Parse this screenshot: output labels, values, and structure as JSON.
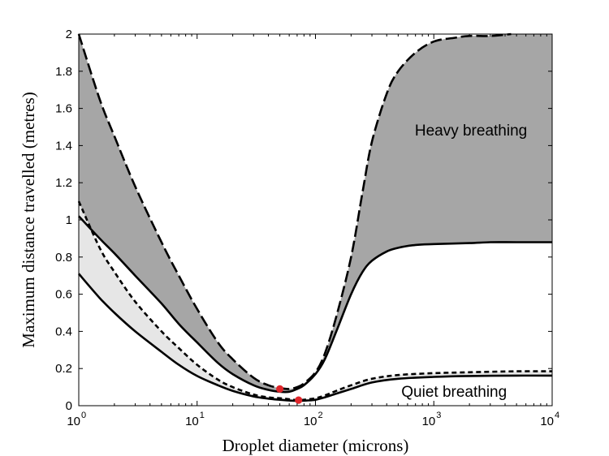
{
  "chart_data": {
    "type": "area",
    "xscale": "log",
    "xlim": [
      1,
      10000
    ],
    "ylim": [
      0,
      2
    ],
    "grid": false,
    "legend": "none",
    "xlabel": "Droplet diameter (microns)",
    "ylabel": "Maximum distance travelled (metres)",
    "yticks": [
      "0",
      "0.2",
      "0.4",
      "0.6",
      "0.8",
      "1",
      "1.2",
      "1.4",
      "1.6",
      "1.8",
      "2"
    ],
    "xticks": [
      {
        "base": "10",
        "exp": "0"
      },
      {
        "base": "10",
        "exp": "1"
      },
      {
        "base": "10",
        "exp": "2"
      },
      {
        "base": "10",
        "exp": "3"
      },
      {
        "base": "10",
        "exp": "4"
      }
    ],
    "annotations": [
      {
        "text": "Heavy breathing",
        "x": 1300,
        "y": 1.48
      },
      {
        "text": "Quiet breathing",
        "x": 1000,
        "y": 0.075
      }
    ],
    "colors": {
      "heavy_fill": "#a6a6a6",
      "quiet_fill": "#e6e6e6",
      "line": "#000000",
      "marker": "#e0262b"
    },
    "series": [
      {
        "style": "dashed-long",
        "x": [
          1,
          1.5,
          2,
          3,
          5,
          7,
          10,
          15,
          20,
          30,
          40,
          50,
          60,
          70,
          80,
          100,
          120,
          150,
          200,
          250,
          300,
          400,
          500,
          700,
          1000,
          1500,
          2000,
          3000,
          4500
        ],
        "y": [
          2.0,
          1.65,
          1.45,
          1.18,
          0.88,
          0.7,
          0.52,
          0.34,
          0.25,
          0.15,
          0.11,
          0.095,
          0.09,
          0.1,
          0.12,
          0.18,
          0.28,
          0.48,
          0.8,
          1.15,
          1.42,
          1.68,
          1.8,
          1.9,
          1.96,
          1.98,
          1.99,
          1.99,
          2.0
        ]
      },
      {
        "style": "solid",
        "x": [
          1,
          1.5,
          2,
          3,
          5,
          7,
          10,
          15,
          20,
          30,
          40,
          50,
          60,
          70,
          80,
          100,
          120,
          150,
          200,
          250,
          300,
          400,
          500,
          700,
          1000,
          2000,
          3000,
          5000,
          10000
        ],
        "y": [
          1.02,
          0.9,
          0.82,
          0.7,
          0.55,
          0.44,
          0.34,
          0.23,
          0.17,
          0.11,
          0.085,
          0.075,
          0.075,
          0.09,
          0.11,
          0.17,
          0.25,
          0.4,
          0.6,
          0.72,
          0.78,
          0.83,
          0.85,
          0.865,
          0.87,
          0.875,
          0.88,
          0.88,
          0.88
        ]
      },
      {
        "style": "dashed-short",
        "x": [
          1,
          1.5,
          2,
          3,
          5,
          7,
          10,
          15,
          20,
          30,
          40,
          50,
          60,
          70,
          80,
          100,
          120,
          150,
          200,
          300,
          500,
          1000,
          2000,
          5000,
          10000
        ],
        "y": [
          1.1,
          0.85,
          0.72,
          0.56,
          0.4,
          0.31,
          0.22,
          0.14,
          0.1,
          0.06,
          0.045,
          0.04,
          0.035,
          0.03,
          0.032,
          0.04,
          0.055,
          0.08,
          0.11,
          0.145,
          0.165,
          0.175,
          0.18,
          0.185,
          0.185
        ]
      },
      {
        "style": "solid",
        "x": [
          1,
          1.5,
          2,
          3,
          5,
          7,
          10,
          15,
          20,
          30,
          40,
          50,
          60,
          70,
          80,
          100,
          120,
          150,
          200,
          300,
          500,
          1000,
          2000,
          5000,
          10000
        ],
        "y": [
          0.71,
          0.58,
          0.5,
          0.4,
          0.29,
          0.22,
          0.16,
          0.11,
          0.08,
          0.05,
          0.038,
          0.032,
          0.028,
          0.026,
          0.027,
          0.032,
          0.045,
          0.065,
          0.09,
          0.125,
          0.145,
          0.155,
          0.16,
          0.162,
          0.162
        ]
      }
    ],
    "markers": [
      {
        "x": 50,
        "y": 0.09
      },
      {
        "x": 72,
        "y": 0.03
      }
    ]
  }
}
